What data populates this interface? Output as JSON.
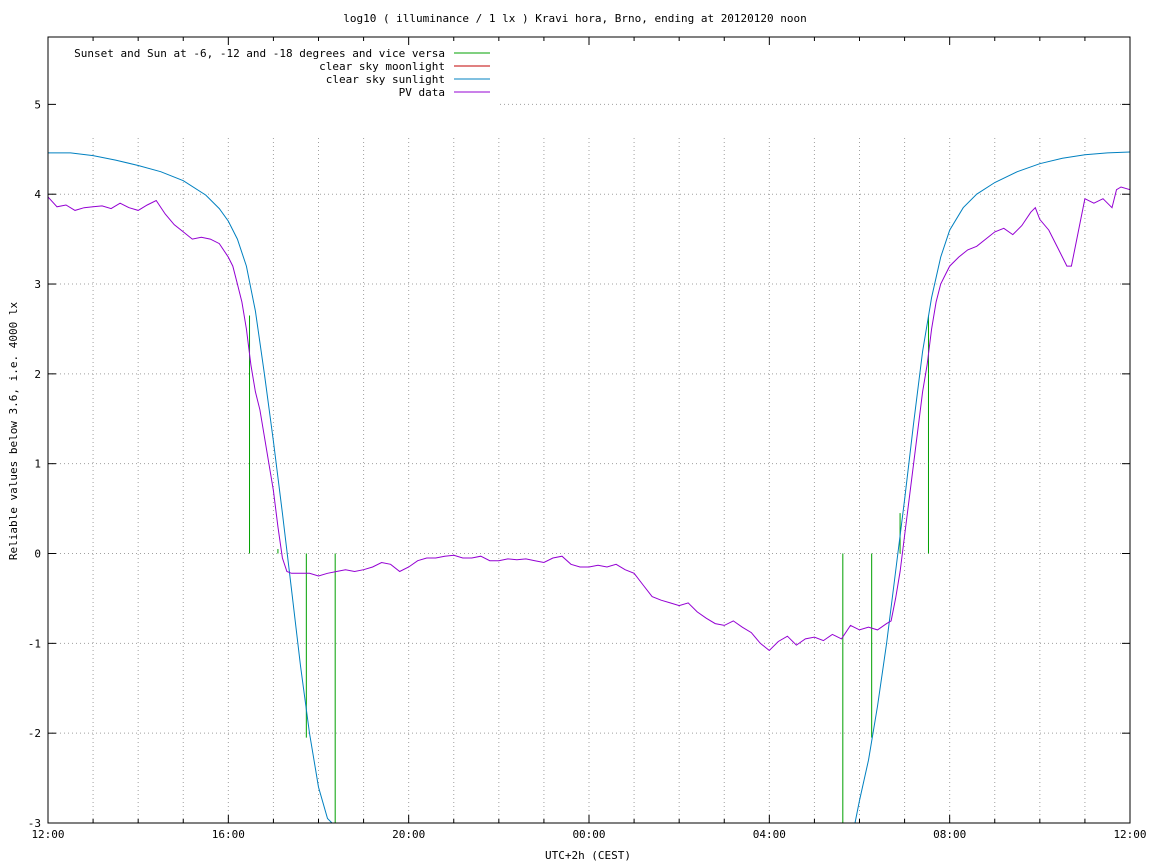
{
  "chart_data": {
    "type": "line",
    "title": "log10 ( illuminance / 1 lx ) Kravi hora, Brno, ending at 20120120 noon",
    "xlabel": "UTC+2h (CEST)",
    "ylabel": "Reliable values below 3.6, i.e. 4000 lx",
    "x_unit": "hours",
    "xlim": [
      0,
      24
    ],
    "ylim": [
      -3,
      5.75
    ],
    "x_ticks": [
      {
        "x": 0,
        "label": "12:00"
      },
      {
        "x": 4,
        "label": "16:00"
      },
      {
        "x": 8,
        "label": "20:00"
      },
      {
        "x": 12,
        "label": "00:00"
      },
      {
        "x": 16,
        "label": "04:00"
      },
      {
        "x": 20,
        "label": "08:00"
      },
      {
        "x": 24,
        "label": "12:00"
      }
    ],
    "x_minor_ticks": [
      1,
      2,
      3,
      5,
      6,
      7,
      9,
      10,
      11,
      13,
      14,
      15,
      17,
      18,
      19,
      21,
      22,
      23
    ],
    "y_ticks": [
      {
        "y": -3,
        "label": "-3"
      },
      {
        "y": -2,
        "label": "-2"
      },
      {
        "y": -1,
        "label": "-1"
      },
      {
        "y": 0,
        "label": "0"
      },
      {
        "y": 1,
        "label": "1"
      },
      {
        "y": 2,
        "label": "2"
      },
      {
        "y": 3,
        "label": "3"
      },
      {
        "y": 4,
        "label": "4"
      },
      {
        "y": 5,
        "label": "5"
      }
    ],
    "grid": true,
    "legend_position": "top-left",
    "series": [
      {
        "name": "Sunset and Sun at -6, -12 and -18 degrees and vice versa",
        "color": "#00a000",
        "kind": "impulses",
        "impulses": [
          {
            "x": 4.47,
            "y0": 0,
            "y1": 2.65
          },
          {
            "x": 5.1,
            "y0": 0,
            "y1": 0.05
          },
          {
            "x": 5.73,
            "y0": -2.05,
            "y1": 0
          },
          {
            "x": 6.37,
            "y0": -3,
            "y1": 0
          },
          {
            "x": 17.63,
            "y0": -3,
            "y1": 0
          },
          {
            "x": 18.27,
            "y0": -2.05,
            "y1": 0
          },
          {
            "x": 18.9,
            "y0": 0,
            "y1": 0.45
          },
          {
            "x": 19.53,
            "y0": 0,
            "y1": 2.65
          }
        ]
      },
      {
        "name": "clear sky moonlight",
        "color": "#c00000",
        "kind": "line",
        "points": []
      },
      {
        "name": "clear sky sunlight",
        "color": "#0080c0",
        "kind": "line",
        "points": [
          [
            0,
            4.46
          ],
          [
            0.5,
            4.46
          ],
          [
            1,
            4.43
          ],
          [
            1.5,
            4.38
          ],
          [
            2,
            4.32
          ],
          [
            2.5,
            4.25
          ],
          [
            3,
            4.15
          ],
          [
            3.5,
            3.99
          ],
          [
            3.8,
            3.84
          ],
          [
            4,
            3.7
          ],
          [
            4.2,
            3.5
          ],
          [
            4.4,
            3.2
          ],
          [
            4.6,
            2.7
          ],
          [
            4.8,
            2.0
          ],
          [
            5.0,
            1.25
          ],
          [
            5.2,
            0.45
          ],
          [
            5.4,
            -0.4
          ],
          [
            5.6,
            -1.25
          ],
          [
            5.8,
            -2.0
          ],
          [
            6.0,
            -2.6
          ],
          [
            6.2,
            -2.95
          ],
          [
            6.3,
            -3.0
          ],
          [
            17.9,
            -3.0
          ],
          [
            18.0,
            -2.75
          ],
          [
            18.2,
            -2.3
          ],
          [
            18.4,
            -1.7
          ],
          [
            18.6,
            -1.0
          ],
          [
            18.8,
            -0.2
          ],
          [
            19.0,
            0.6
          ],
          [
            19.2,
            1.45
          ],
          [
            19.4,
            2.25
          ],
          [
            19.6,
            2.85
          ],
          [
            19.8,
            3.3
          ],
          [
            20.0,
            3.6
          ],
          [
            20.3,
            3.85
          ],
          [
            20.6,
            4.0
          ],
          [
            21,
            4.13
          ],
          [
            21.5,
            4.25
          ],
          [
            22,
            4.34
          ],
          [
            22.5,
            4.4
          ],
          [
            23,
            4.44
          ],
          [
            23.5,
            4.46
          ],
          [
            24,
            4.47
          ]
        ]
      },
      {
        "name": "PV data",
        "color": "#9400d3",
        "kind": "line",
        "points": [
          [
            0,
            3.97
          ],
          [
            0.2,
            3.86
          ],
          [
            0.4,
            3.88
          ],
          [
            0.6,
            3.82
          ],
          [
            0.8,
            3.85
          ],
          [
            1.0,
            3.86
          ],
          [
            1.2,
            3.87
          ],
          [
            1.4,
            3.84
          ],
          [
            1.6,
            3.9
          ],
          [
            1.8,
            3.85
          ],
          [
            2.0,
            3.82
          ],
          [
            2.2,
            3.88
          ],
          [
            2.4,
            3.93
          ],
          [
            2.6,
            3.78
          ],
          [
            2.8,
            3.66
          ],
          [
            3.0,
            3.58
          ],
          [
            3.2,
            3.5
          ],
          [
            3.4,
            3.52
          ],
          [
            3.6,
            3.5
          ],
          [
            3.8,
            3.45
          ],
          [
            4.0,
            3.3
          ],
          [
            4.1,
            3.2
          ],
          [
            4.2,
            3.0
          ],
          [
            4.3,
            2.8
          ],
          [
            4.4,
            2.5
          ],
          [
            4.5,
            2.1
          ],
          [
            4.6,
            1.8
          ],
          [
            4.7,
            1.6
          ],
          [
            4.8,
            1.3
          ],
          [
            4.9,
            1.0
          ],
          [
            5.0,
            0.7
          ],
          [
            5.1,
            0.3
          ],
          [
            5.2,
            -0.05
          ],
          [
            5.3,
            -0.2
          ],
          [
            5.4,
            -0.22
          ],
          [
            5.6,
            -0.22
          ],
          [
            5.8,
            -0.22
          ],
          [
            6.0,
            -0.25
          ],
          [
            6.2,
            -0.22
          ],
          [
            6.4,
            -0.2
          ],
          [
            6.6,
            -0.18
          ],
          [
            6.8,
            -0.2
          ],
          [
            7.0,
            -0.18
          ],
          [
            7.2,
            -0.15
          ],
          [
            7.4,
            -0.1
          ],
          [
            7.6,
            -0.12
          ],
          [
            7.8,
            -0.2
          ],
          [
            8.0,
            -0.15
          ],
          [
            8.2,
            -0.08
          ],
          [
            8.4,
            -0.05
          ],
          [
            8.6,
            -0.05
          ],
          [
            8.8,
            -0.03
          ],
          [
            9.0,
            -0.02
          ],
          [
            9.2,
            -0.05
          ],
          [
            9.4,
            -0.05
          ],
          [
            9.6,
            -0.03
          ],
          [
            9.8,
            -0.08
          ],
          [
            10.0,
            -0.08
          ],
          [
            10.2,
            -0.06
          ],
          [
            10.4,
            -0.07
          ],
          [
            10.6,
            -0.06
          ],
          [
            10.8,
            -0.08
          ],
          [
            11.0,
            -0.1
          ],
          [
            11.2,
            -0.05
          ],
          [
            11.4,
            -0.03
          ],
          [
            11.6,
            -0.12
          ],
          [
            11.8,
            -0.15
          ],
          [
            12.0,
            -0.15
          ],
          [
            12.2,
            -0.13
          ],
          [
            12.4,
            -0.15
          ],
          [
            12.6,
            -0.12
          ],
          [
            12.8,
            -0.18
          ],
          [
            13.0,
            -0.22
          ],
          [
            13.2,
            -0.35
          ],
          [
            13.4,
            -0.48
          ],
          [
            13.6,
            -0.52
          ],
          [
            13.8,
            -0.55
          ],
          [
            14.0,
            -0.58
          ],
          [
            14.2,
            -0.55
          ],
          [
            14.4,
            -0.65
          ],
          [
            14.6,
            -0.72
          ],
          [
            14.8,
            -0.78
          ],
          [
            15.0,
            -0.8
          ],
          [
            15.2,
            -0.75
          ],
          [
            15.4,
            -0.82
          ],
          [
            15.6,
            -0.88
          ],
          [
            15.8,
            -1.0
          ],
          [
            16.0,
            -1.08
          ],
          [
            16.2,
            -0.98
          ],
          [
            16.4,
            -0.92
          ],
          [
            16.6,
            -1.02
          ],
          [
            16.8,
            -0.95
          ],
          [
            17.0,
            -0.93
          ],
          [
            17.2,
            -0.97
          ],
          [
            17.4,
            -0.9
          ],
          [
            17.6,
            -0.95
          ],
          [
            17.8,
            -0.8
          ],
          [
            18.0,
            -0.85
          ],
          [
            18.2,
            -0.82
          ],
          [
            18.4,
            -0.85
          ],
          [
            18.6,
            -0.78
          ],
          [
            18.7,
            -0.75
          ],
          [
            18.8,
            -0.5
          ],
          [
            18.9,
            -0.2
          ],
          [
            19.0,
            0.2
          ],
          [
            19.1,
            0.6
          ],
          [
            19.2,
            1.0
          ],
          [
            19.3,
            1.4
          ],
          [
            19.4,
            1.8
          ],
          [
            19.5,
            2.1
          ],
          [
            19.6,
            2.5
          ],
          [
            19.7,
            2.8
          ],
          [
            19.8,
            3.0
          ],
          [
            19.9,
            3.1
          ],
          [
            20.0,
            3.2
          ],
          [
            20.2,
            3.3
          ],
          [
            20.4,
            3.38
          ],
          [
            20.6,
            3.42
          ],
          [
            20.8,
            3.5
          ],
          [
            21.0,
            3.58
          ],
          [
            21.2,
            3.62
          ],
          [
            21.4,
            3.55
          ],
          [
            21.6,
            3.65
          ],
          [
            21.8,
            3.8
          ],
          [
            21.9,
            3.85
          ],
          [
            22.0,
            3.72
          ],
          [
            22.2,
            3.6
          ],
          [
            22.4,
            3.4
          ],
          [
            22.6,
            3.2
          ],
          [
            22.7,
            3.2
          ],
          [
            22.8,
            3.45
          ],
          [
            22.9,
            3.7
          ],
          [
            23.0,
            3.95
          ],
          [
            23.2,
            3.9
          ],
          [
            23.4,
            3.95
          ],
          [
            23.6,
            3.85
          ],
          [
            23.7,
            4.05
          ],
          [
            23.8,
            4.08
          ],
          [
            24.0,
            4.05
          ]
        ]
      }
    ]
  }
}
